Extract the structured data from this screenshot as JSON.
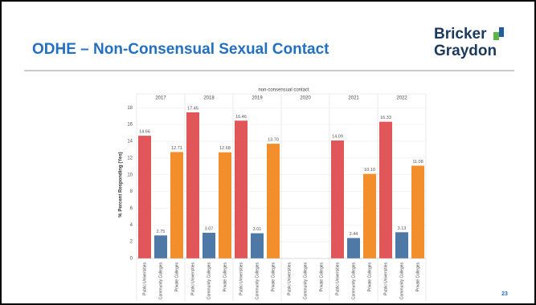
{
  "header": {
    "title": "ODHE – Non-Consensual Sexual Contact",
    "logo": [
      "Bricker",
      "Graydon"
    ],
    "page_number": "23"
  },
  "chart_data": {
    "type": "bar",
    "title": "non-consensual contact",
    "y_label": "% Percent Responding (Yes)",
    "categories": [
      "Public Universities",
      "Community Colleges",
      "Private Colleges"
    ],
    "colors": [
      "#e15759",
      "#4e79a7",
      "#f28e2b"
    ],
    "panels": [
      {
        "name": "2017",
        "values": [
          14.66,
          2.75,
          12.71
        ],
        "value_labels": [
          "14.66",
          "2.75",
          "12.71"
        ]
      },
      {
        "name": "2018",
        "values": [
          17.45,
          3.07,
          12.68
        ],
        "value_labels": [
          "17.45",
          "3.07",
          "12.68"
        ]
      },
      {
        "name": "2019",
        "values": [
          16.46,
          3.01,
          13.7
        ],
        "value_labels": [
          "16.46",
          "3.01",
          "13.70"
        ]
      },
      {
        "name": "2020",
        "values": [
          null,
          null,
          null
        ],
        "value_labels": [
          null,
          null,
          null
        ]
      },
      {
        "name": "2021",
        "values": [
          14.09,
          2.44,
          10.1
        ],
        "value_labels": [
          "14.09",
          "2.44",
          "10.10"
        ]
      },
      {
        "name": "2022",
        "values": [
          16.33,
          3.13,
          11.08
        ],
        "value_labels": [
          "16.33",
          "3.13",
          "11.08"
        ]
      }
    ],
    "ylim": [
      0,
      18.6
    ],
    "yticks": [
      0,
      2,
      4,
      6,
      8,
      10,
      12,
      14,
      16,
      18
    ],
    "grid": true
  }
}
